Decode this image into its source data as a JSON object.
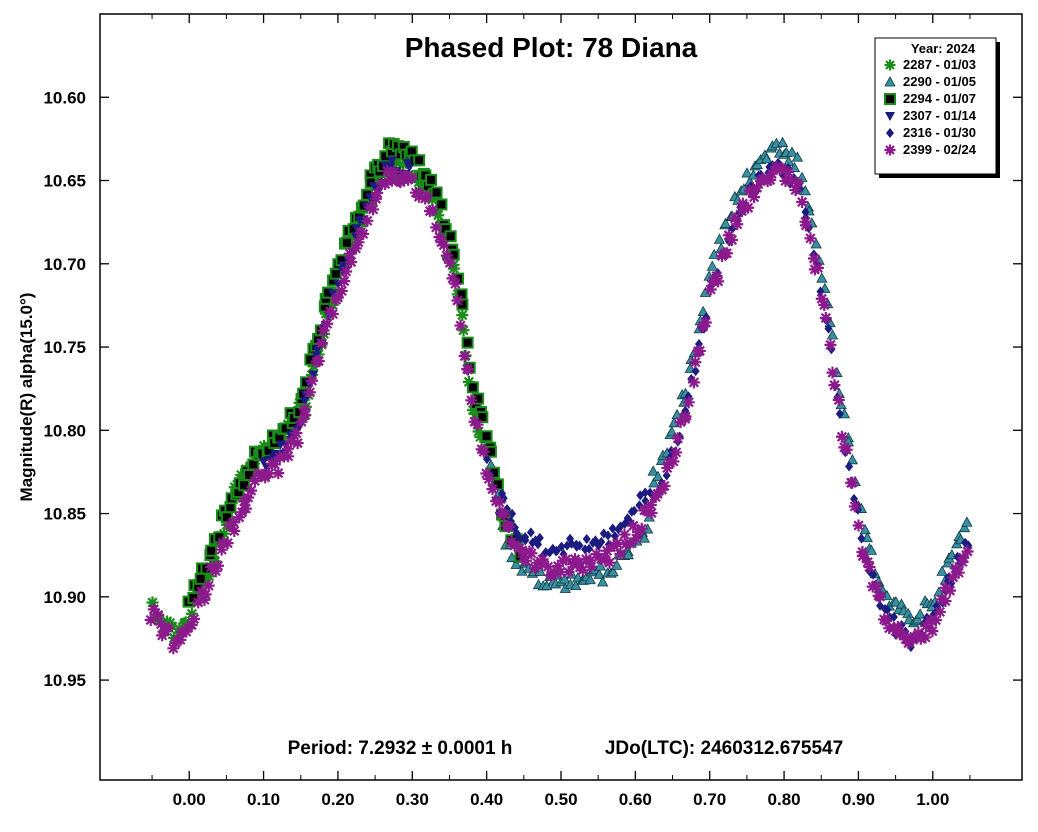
{
  "chart_data": {
    "type": "scatter",
    "title": "Phased Plot: 78 Diana",
    "xlabel": "",
    "ylabel": "Magnitude(R) alpha(15.0°)",
    "xlim": [
      -0.12,
      1.12
    ],
    "ylim": [
      11.01,
      10.55
    ],
    "y_inverted": true,
    "x_ticks": [
      "0.00",
      "0.10",
      "0.20",
      "0.30",
      "0.40",
      "0.50",
      "0.60",
      "0.70",
      "0.80",
      "0.90",
      "1.00"
    ],
    "y_ticks": [
      "10.60",
      "10.65",
      "10.70",
      "10.75",
      "10.80",
      "10.85",
      "10.90",
      "10.95"
    ],
    "grid": false,
    "legend_position": "top-right",
    "legend_title": "Year: 2024",
    "annotation_period": "Period: 7.2932 ± 0.0001 h",
    "annotation_epoch": "JDo(LTC): 2460312.675547",
    "phase_curve": [
      [
        -0.05,
        10.905
      ],
      [
        -0.02,
        10.922
      ],
      [
        0.0,
        10.915
      ],
      [
        0.03,
        10.88
      ],
      [
        0.06,
        10.85
      ],
      [
        0.09,
        10.825
      ],
      [
        0.12,
        10.815
      ],
      [
        0.15,
        10.795
      ],
      [
        0.18,
        10.74
      ],
      [
        0.21,
        10.7
      ],
      [
        0.24,
        10.665
      ],
      [
        0.27,
        10.64
      ],
      [
        0.3,
        10.645
      ],
      [
        0.33,
        10.665
      ],
      [
        0.36,
        10.71
      ],
      [
        0.38,
        10.78
      ],
      [
        0.41,
        10.835
      ],
      [
        0.44,
        10.865
      ],
      [
        0.48,
        10.878
      ],
      [
        0.52,
        10.875
      ],
      [
        0.56,
        10.872
      ],
      [
        0.6,
        10.855
      ],
      [
        0.64,
        10.825
      ],
      [
        0.67,
        10.78
      ],
      [
        0.7,
        10.715
      ],
      [
        0.73,
        10.675
      ],
      [
        0.76,
        10.65
      ],
      [
        0.79,
        10.635
      ],
      [
        0.82,
        10.65
      ],
      [
        0.85,
        10.71
      ],
      [
        0.88,
        10.8
      ],
      [
        0.91,
        10.875
      ],
      [
        0.94,
        10.91
      ],
      [
        0.97,
        10.922
      ],
      [
        1.0,
        10.91
      ],
      [
        1.03,
        10.88
      ],
      [
        1.05,
        10.86
      ]
    ],
    "series": [
      {
        "name": "2287 - 01/03",
        "marker": "asterisk",
        "color": "#1a8c1a",
        "phase_range": [
          -0.05,
          0.4
        ],
        "bump": 0.0,
        "trough_shift": 0.024
      },
      {
        "name": "2290 - 01/05",
        "marker": "triangle-up",
        "color": "#3a8fa0",
        "phase_range": [
          0.4,
          1.05
        ],
        "bump": -0.008,
        "trough_shift": 0.022
      },
      {
        "name": "2294 - 01/07",
        "marker": "square",
        "color": "#1a8c1a",
        "phase_range": [
          0.0,
          0.45
        ],
        "bump": -0.01,
        "trough_shift": 0.015
      },
      {
        "name": "2307 - 01/14",
        "marker": "triangle-down",
        "color": "#1b1b80",
        "phase_range": [
          0.1,
          0.3
        ],
        "bump": 0.0,
        "trough_shift": -0.02
      },
      {
        "name": "2316 - 01/30",
        "marker": "diamond",
        "color": "#1b1b80",
        "phase_range": [
          0.4,
          1.05
        ],
        "bump": 0.004,
        "trough_shift": -0.01
      },
      {
        "name": "2399 - 02/24",
        "marker": "asterisk",
        "color": "#8c1a8c",
        "phase_range": [
          -0.05,
          1.05
        ],
        "bump": 0.006,
        "trough_shift": 0.0
      }
    ]
  }
}
